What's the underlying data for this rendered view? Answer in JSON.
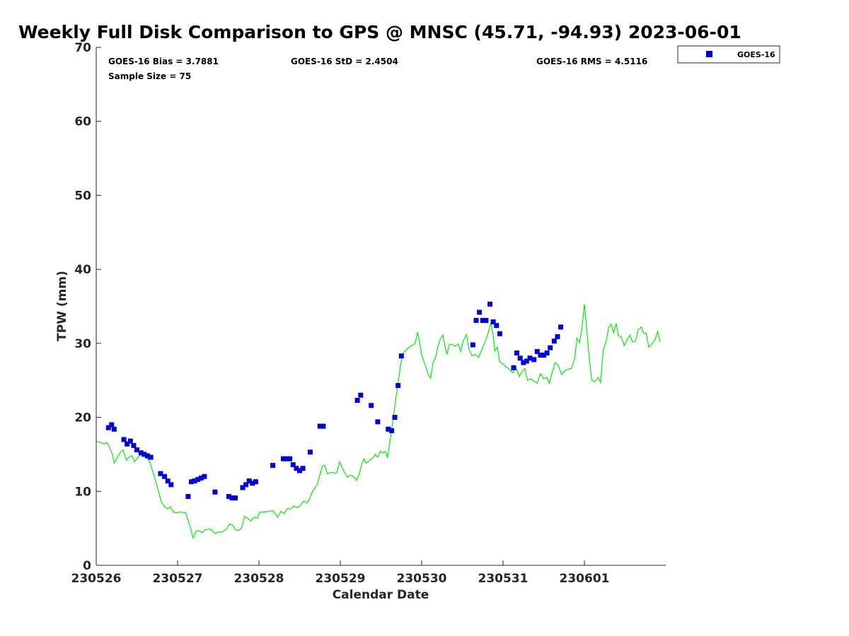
{
  "chart_data": {
    "type": "scatter",
    "title": "Weekly Full Disk Comparison to GPS @ MNSC (45.71, -94.93) 2023-06-01",
    "xlabel": "Calendar Date",
    "ylabel": "TPW (mm)",
    "xlim": [
      0,
      7
    ],
    "ylim": [
      0,
      70
    ],
    "x_ticks": [
      {
        "pos": 0,
        "label": "230526"
      },
      {
        "pos": 1,
        "label": "230527"
      },
      {
        "pos": 2,
        "label": "230528"
      },
      {
        "pos": 3,
        "label": "230529"
      },
      {
        "pos": 4,
        "label": "230530"
      },
      {
        "pos": 5,
        "label": "230531"
      },
      {
        "pos": 6,
        "label": "230601"
      }
    ],
    "y_ticks": [
      0,
      10,
      20,
      30,
      40,
      50,
      60,
      70
    ],
    "stats": {
      "bias": "GOES-16 Bias = 3.7881",
      "std": "GOES-16 StD = 2.4504",
      "rms": "GOES-16 RMS = 4.5116",
      "sample": "Sample Size = 75"
    },
    "legend": {
      "location": "outside top-right",
      "entries": [
        "GOES-16"
      ]
    },
    "colors": {
      "goes": "#0000dd",
      "gps": "#00ee00"
    },
    "series": [
      {
        "name": "GOES-16",
        "marker": "square",
        "points": [
          [
            0.15,
            18.6
          ],
          [
            0.19,
            19.0
          ],
          [
            0.22,
            18.4
          ],
          [
            0.34,
            17.0
          ],
          [
            0.38,
            16.4
          ],
          [
            0.42,
            16.8
          ],
          [
            0.46,
            16.2
          ],
          [
            0.5,
            15.6
          ],
          [
            0.55,
            15.2
          ],
          [
            0.59,
            15.0
          ],
          [
            0.63,
            14.8
          ],
          [
            0.67,
            14.6
          ],
          [
            0.79,
            12.4
          ],
          [
            0.84,
            12.0
          ],
          [
            0.88,
            11.4
          ],
          [
            0.92,
            10.9
          ],
          [
            1.13,
            9.3
          ],
          [
            1.17,
            11.3
          ],
          [
            1.21,
            11.4
          ],
          [
            1.25,
            11.6
          ],
          [
            1.29,
            11.8
          ],
          [
            1.33,
            12.0
          ],
          [
            1.46,
            9.9
          ],
          [
            1.63,
            9.3
          ],
          [
            1.67,
            9.1
          ],
          [
            1.71,
            9.1
          ],
          [
            1.8,
            10.5
          ],
          [
            1.84,
            10.9
          ],
          [
            1.88,
            11.4
          ],
          [
            1.92,
            11.1
          ],
          [
            1.96,
            11.3
          ],
          [
            2.17,
            13.5
          ],
          [
            2.3,
            14.4
          ],
          [
            2.34,
            14.4
          ],
          [
            2.38,
            14.4
          ],
          [
            2.42,
            13.6
          ],
          [
            2.46,
            13.1
          ],
          [
            2.5,
            12.8
          ],
          [
            2.54,
            13.1
          ],
          [
            2.63,
            15.3
          ],
          [
            2.75,
            18.8
          ],
          [
            2.79,
            18.8
          ],
          [
            3.21,
            22.3
          ],
          [
            3.25,
            23.0
          ],
          [
            3.38,
            21.6
          ],
          [
            3.46,
            19.4
          ],
          [
            3.59,
            18.4
          ],
          [
            3.63,
            18.2
          ],
          [
            3.67,
            20.0
          ],
          [
            3.71,
            24.3
          ],
          [
            3.75,
            28.3
          ],
          [
            4.63,
            29.8
          ],
          [
            4.67,
            33.1
          ],
          [
            4.71,
            34.2
          ],
          [
            4.75,
            33.1
          ],
          [
            4.79,
            33.1
          ],
          [
            4.84,
            35.3
          ],
          [
            4.88,
            32.9
          ],
          [
            4.92,
            32.4
          ],
          [
            4.96,
            31.3
          ],
          [
            5.13,
            26.7
          ],
          [
            5.17,
            28.7
          ],
          [
            5.21,
            28.0
          ],
          [
            5.25,
            27.4
          ],
          [
            5.29,
            27.6
          ],
          [
            5.33,
            28.0
          ],
          [
            5.38,
            27.8
          ],
          [
            5.42,
            28.9
          ],
          [
            5.46,
            28.4
          ],
          [
            5.5,
            28.4
          ],
          [
            5.54,
            28.7
          ],
          [
            5.58,
            29.4
          ],
          [
            5.63,
            30.3
          ],
          [
            5.67,
            30.9
          ],
          [
            5.71,
            32.2
          ]
        ]
      },
      {
        "name": "GPS",
        "marker": "line",
        "points": [
          [
            0.0,
            16.8
          ],
          [
            0.05,
            16.6
          ],
          [
            0.1,
            16.4
          ],
          [
            0.13,
            16.6
          ],
          [
            0.16,
            16.0
          ],
          [
            0.2,
            15.0
          ],
          [
            0.22,
            13.8
          ],
          [
            0.26,
            14.6
          ],
          [
            0.3,
            15.3
          ],
          [
            0.33,
            15.6
          ],
          [
            0.37,
            14.2
          ],
          [
            0.4,
            14.6
          ],
          [
            0.44,
            14.8
          ],
          [
            0.47,
            14.0
          ],
          [
            0.5,
            14.4
          ],
          [
            0.54,
            14.9
          ],
          [
            0.58,
            15.0
          ],
          [
            0.62,
            14.5
          ],
          [
            0.65,
            14.2
          ],
          [
            0.68,
            13.2
          ],
          [
            0.72,
            11.8
          ],
          [
            0.76,
            10.2
          ],
          [
            0.8,
            8.6
          ],
          [
            0.84,
            7.9
          ],
          [
            0.88,
            7.6
          ],
          [
            0.91,
            7.9
          ],
          [
            0.95,
            7.2
          ],
          [
            0.98,
            7.1
          ],
          [
            1.04,
            7.2
          ],
          [
            1.1,
            7.1
          ],
          [
            1.13,
            6.1
          ],
          [
            1.16,
            5.0
          ],
          [
            1.19,
            3.7
          ],
          [
            1.23,
            4.6
          ],
          [
            1.27,
            4.7
          ],
          [
            1.3,
            4.4
          ],
          [
            1.34,
            4.8
          ],
          [
            1.38,
            4.9
          ],
          [
            1.42,
            4.8
          ],
          [
            1.46,
            4.3
          ],
          [
            1.5,
            4.5
          ],
          [
            1.55,
            4.5
          ],
          [
            1.6,
            4.9
          ],
          [
            1.64,
            5.6
          ],
          [
            1.68,
            5.4
          ],
          [
            1.71,
            4.8
          ],
          [
            1.75,
            4.7
          ],
          [
            1.79,
            5.1
          ],
          [
            1.82,
            6.6
          ],
          [
            1.86,
            6.4
          ],
          [
            1.9,
            6.0
          ],
          [
            1.94,
            6.5
          ],
          [
            1.98,
            6.4
          ],
          [
            2.01,
            7.2
          ],
          [
            2.06,
            7.2
          ],
          [
            2.12,
            7.3
          ],
          [
            2.17,
            7.4
          ],
          [
            2.2,
            7.0
          ],
          [
            2.23,
            6.5
          ],
          [
            2.27,
            7.3
          ],
          [
            2.31,
            7.0
          ],
          [
            2.35,
            7.7
          ],
          [
            2.39,
            7.6
          ],
          [
            2.43,
            8.0
          ],
          [
            2.47,
            7.8
          ],
          [
            2.51,
            8.1
          ],
          [
            2.55,
            8.7
          ],
          [
            2.59,
            8.4
          ],
          [
            2.62,
            8.9
          ],
          [
            2.65,
            9.8
          ],
          [
            2.69,
            10.5
          ],
          [
            2.72,
            11.0
          ],
          [
            2.75,
            12.3
          ],
          [
            2.78,
            13.4
          ],
          [
            2.81,
            13.5
          ],
          [
            2.84,
            12.4
          ],
          [
            2.87,
            12.5
          ],
          [
            2.9,
            12.6
          ],
          [
            2.93,
            12.4
          ],
          [
            2.96,
            12.6
          ],
          [
            2.99,
            14.0
          ],
          [
            3.02,
            13.3
          ],
          [
            3.05,
            12.6
          ],
          [
            3.09,
            11.9
          ],
          [
            3.12,
            12.2
          ],
          [
            3.16,
            12.0
          ],
          [
            3.2,
            11.5
          ],
          [
            3.23,
            12.2
          ],
          [
            3.26,
            13.5
          ],
          [
            3.29,
            14.4
          ],
          [
            3.32,
            13.8
          ],
          [
            3.36,
            14.2
          ],
          [
            3.4,
            14.5
          ],
          [
            3.43,
            15.0
          ],
          [
            3.46,
            14.6
          ],
          [
            3.49,
            15.4
          ],
          [
            3.52,
            15.2
          ],
          [
            3.55,
            15.4
          ],
          [
            3.58,
            14.6
          ],
          [
            3.62,
            17.4
          ],
          [
            3.66,
            20.7
          ],
          [
            3.7,
            23.9
          ],
          [
            3.74,
            27.0
          ],
          [
            3.77,
            28.6
          ],
          [
            3.8,
            29.0
          ],
          [
            3.84,
            29.4
          ],
          [
            3.88,
            29.7
          ],
          [
            3.92,
            30.0
          ],
          [
            3.95,
            31.5
          ],
          [
            3.97,
            30.5
          ],
          [
            4.0,
            28.4
          ],
          [
            4.04,
            27.2
          ],
          [
            4.08,
            25.8
          ],
          [
            4.11,
            25.3
          ],
          [
            4.14,
            27.4
          ],
          [
            4.17,
            28.0
          ],
          [
            4.2,
            29.6
          ],
          [
            4.23,
            30.6
          ],
          [
            4.26,
            31.1
          ],
          [
            4.29,
            29.4
          ],
          [
            4.31,
            28.5
          ],
          [
            4.34,
            29.8
          ],
          [
            4.37,
            29.9
          ],
          [
            4.41,
            29.6
          ],
          [
            4.45,
            29.9
          ],
          [
            4.48,
            28.9
          ],
          [
            4.51,
            30.3
          ],
          [
            4.55,
            31.2
          ],
          [
            4.58,
            29.3
          ],
          [
            4.62,
            28.3
          ],
          [
            4.66,
            28.5
          ],
          [
            4.7,
            28.1
          ],
          [
            4.74,
            29.2
          ],
          [
            4.78,
            30.2
          ],
          [
            4.82,
            31.5
          ],
          [
            4.85,
            32.8
          ],
          [
            4.88,
            31.0
          ],
          [
            4.9,
            29.0
          ],
          [
            4.93,
            29.5
          ],
          [
            4.96,
            27.5
          ],
          [
            5.0,
            27.2
          ],
          [
            5.04,
            26.8
          ],
          [
            5.08,
            26.5
          ],
          [
            5.12,
            26.0
          ],
          [
            5.16,
            26.7
          ],
          [
            5.2,
            25.5
          ],
          [
            5.24,
            26.3
          ],
          [
            5.27,
            26.6
          ],
          [
            5.3,
            25.0
          ],
          [
            5.34,
            25.2
          ],
          [
            5.38,
            24.9
          ],
          [
            5.42,
            24.6
          ],
          [
            5.46,
            25.9
          ],
          [
            5.5,
            25.2
          ],
          [
            5.54,
            25.4
          ],
          [
            5.57,
            24.6
          ],
          [
            5.6,
            25.9
          ],
          [
            5.64,
            27.4
          ],
          [
            5.68,
            27.0
          ],
          [
            5.72,
            25.8
          ],
          [
            5.76,
            26.3
          ],
          [
            5.8,
            26.5
          ],
          [
            5.84,
            26.6
          ],
          [
            5.88,
            27.9
          ],
          [
            5.91,
            30.7
          ],
          [
            5.94,
            30.1
          ],
          [
            5.97,
            32.0
          ],
          [
            6.0,
            35.3
          ],
          [
            6.03,
            31.6
          ],
          [
            6.06,
            28.0
          ],
          [
            6.09,
            25.0
          ],
          [
            6.13,
            24.8
          ],
          [
            6.17,
            25.4
          ],
          [
            6.2,
            24.7
          ],
          [
            6.23,
            29.0
          ],
          [
            6.27,
            30.4
          ],
          [
            6.3,
            32.2
          ],
          [
            6.33,
            32.6
          ],
          [
            6.36,
            31.4
          ],
          [
            6.39,
            32.7
          ],
          [
            6.42,
            31.0
          ],
          [
            6.45,
            30.9
          ],
          [
            6.49,
            29.7
          ],
          [
            6.53,
            30.6
          ],
          [
            6.56,
            31.1
          ],
          [
            6.59,
            30.2
          ],
          [
            6.63,
            30.3
          ],
          [
            6.66,
            31.8
          ],
          [
            6.7,
            32.2
          ],
          [
            6.73,
            31.3
          ],
          [
            6.76,
            31.4
          ],
          [
            6.79,
            29.5
          ],
          [
            6.83,
            29.9
          ],
          [
            6.87,
            30.5
          ],
          [
            6.9,
            31.6
          ],
          [
            6.93,
            30.2
          ]
        ]
      }
    ]
  }
}
